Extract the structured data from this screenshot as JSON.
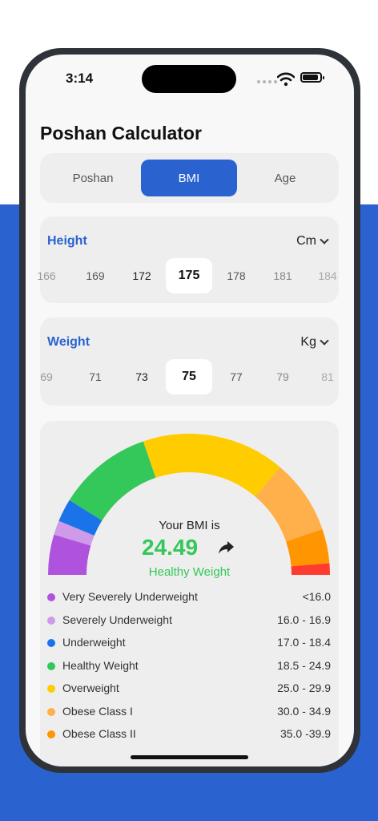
{
  "status_bar": {
    "time": "3:14"
  },
  "app": {
    "title": "Poshan Calculator"
  },
  "tabs": [
    {
      "label": "Poshan",
      "active": false
    },
    {
      "label": "BMI",
      "active": true
    },
    {
      "label": "Age",
      "active": false
    }
  ],
  "height": {
    "label": "Height",
    "unit": "Cm",
    "values": [
      "166",
      "169",
      "172",
      "175",
      "178",
      "181",
      "184"
    ],
    "selected": "175"
  },
  "weight": {
    "label": "Weight",
    "unit": "Kg",
    "values": [
      "69",
      "71",
      "73",
      "75",
      "77",
      "79",
      "81"
    ],
    "selected": "75"
  },
  "result": {
    "label": "Your BMI is",
    "value": "24.49",
    "category": "Healthy Weight",
    "category_color": "#34c759"
  },
  "legend": [
    {
      "name": "Very Severely Underweight",
      "range": "<16.0",
      "color": "#af52de"
    },
    {
      "name": "Severely Underweight",
      "range": "16.0 - 16.9",
      "color": "#cf9ae8"
    },
    {
      "name": "Underweight",
      "range": "17.0 - 18.4",
      "color": "#1a73e8"
    },
    {
      "name": "Healthy Weight",
      "range": "18.5 - 24.9",
      "color": "#34c759"
    },
    {
      "name": "Overweight",
      "range": "25.0 - 29.9",
      "color": "#ffcc00"
    },
    {
      "name": "Obese Class I",
      "range": "30.0 - 34.9",
      "color": "#ffb04a"
    },
    {
      "name": "Obese Class II",
      "range": "35.0 -39.9",
      "color": "#ff9500"
    }
  ],
  "gauge_segments": [
    {
      "color": "#af52de",
      "weight": 1.4
    },
    {
      "color": "#cf9ae8",
      "weight": 0.5
    },
    {
      "color": "#1a73e8",
      "weight": 0.8
    },
    {
      "color": "#34c759",
      "weight": 3.3
    },
    {
      "color": "#ffcc00",
      "weight": 5.0
    },
    {
      "color": "#ffb04a",
      "weight": 2.6
    },
    {
      "color": "#ff9500",
      "weight": 1.2
    },
    {
      "color": "#ff3b30",
      "weight": 0.4
    }
  ],
  "colors": {
    "accent": "#2a63cf"
  }
}
